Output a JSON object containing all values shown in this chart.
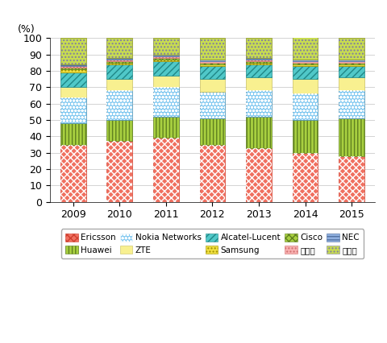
{
  "years": [
    "2009",
    "2010",
    "2011",
    "2012",
    "2013",
    "2014",
    "2015"
  ],
  "series_order": [
    "Ericsson",
    "Huawei",
    "Nokia Networks",
    "ZTE",
    "Alcatel-Lucent",
    "Samsung",
    "Cisco",
    "富士通",
    "NEC",
    "その他"
  ],
  "series_data": {
    "Ericsson": [
      35,
      37,
      39,
      35,
      33,
      30,
      28
    ],
    "Huawei": [
      13,
      13,
      13,
      16,
      19,
      20,
      23
    ],
    "Nokia Networks": [
      16,
      18,
      18,
      16,
      16,
      16,
      17
    ],
    "ZTE": [
      6,
      7,
      7,
      8,
      8,
      9,
      8
    ],
    "Alcatel-Lucent": [
      9,
      9,
      9,
      8,
      8,
      8,
      7
    ],
    "Samsung": [
      2,
      1,
      1,
      1,
      1,
      1,
      1
    ],
    "Cisco": [
      1,
      1,
      1,
      1,
      1,
      1,
      1
    ],
    "富士通": [
      1,
      1,
      1,
      1,
      1,
      1,
      1
    ],
    "NEC": [
      1,
      1,
      1,
      1,
      1,
      1,
      1
    ],
    "その他": [
      16,
      12,
      10,
      13,
      12,
      14,
      13
    ]
  },
  "props": {
    "Ericsson": {
      "fc": "#f07060",
      "hatch": "....",
      "ec": "#c04030",
      "hatch_color": "#e05050"
    },
    "Huawei": {
      "fc": "#a8d040",
      "hatch": "||||",
      "ec": "#708020",
      "hatch_color": "#708020"
    },
    "Nokia Networks": {
      "fc": "#80c8f0",
      "hatch": ".....",
      "ec": "#5090b0",
      "hatch_color": "#ffffff"
    },
    "ZTE": {
      "fc": "#f8f090",
      "hatch": "",
      "ec": "#c0b040",
      "hatch_color": "#c0b040"
    },
    "Alcatel-Lucent": {
      "fc": "#50c8c8",
      "hatch": "////",
      "ec": "#208888",
      "hatch_color": "#208888"
    },
    "Samsung": {
      "fc": "#f0e040",
      "hatch": "....",
      "ec": "#a09000",
      "hatch_color": "#a09000"
    },
    "Cisco": {
      "fc": "#a8d040",
      "hatch": "xxxx",
      "ec": "#708020",
      "hatch_color": "#708020"
    },
    "富士通": {
      "fc": "#f8b0b0",
      "hatch": "....",
      "ec": "#c07070",
      "hatch_color": "#c07070"
    },
    "NEC": {
      "fc": "#90b8e0",
      "hatch": "----",
      "ec": "#507090",
      "hatch_color": "#507090"
    },
    "その他": {
      "fc": "#c8dc50",
      "hatch": "....",
      "ec": "#889020",
      "hatch_color": "#606090"
    }
  },
  "ylim": [
    0,
    100
  ],
  "yticks": [
    0,
    10,
    20,
    30,
    40,
    50,
    60,
    70,
    80,
    90,
    100
  ],
  "bar_width": 0.55,
  "grid_color": "#cccccc",
  "legend_labels": [
    "Ericsson",
    "Huawei",
    "Nokia Networks",
    "ZTE",
    "Alcatel-Lucent",
    "Samsung",
    "Cisco",
    "富士通",
    "NEC",
    "その他"
  ]
}
